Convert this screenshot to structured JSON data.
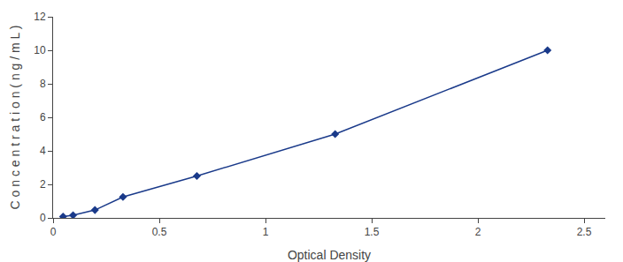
{
  "chart_data": {
    "type": "line",
    "x": [
      0.047,
      0.094,
      0.197,
      0.329,
      0.677,
      1.328,
      2.328
    ],
    "values": [
      0.078,
      0.156,
      0.469,
      1.25,
      2.5,
      5.0,
      10.0
    ],
    "color": "#1a3a8a",
    "marker": "diamond",
    "xlabel": "Optical Density",
    "ylabel": "C o n c e n t r a t i o n ( n g / m L )",
    "xlim": [
      0,
      2.6
    ],
    "ylim": [
      0,
      12
    ],
    "xticks": [
      0,
      0.5,
      1,
      1.5,
      2,
      2.5
    ],
    "yticks": [
      0,
      2,
      4,
      6,
      8,
      10,
      12
    ],
    "grid": false
  }
}
